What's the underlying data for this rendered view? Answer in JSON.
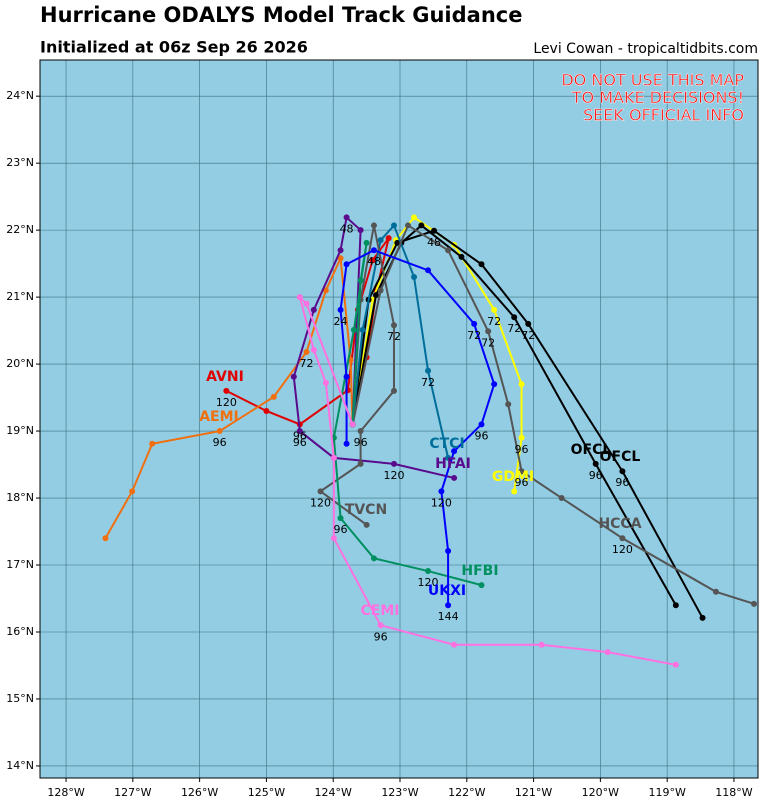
{
  "chart_data": {
    "type": "line",
    "title": "Hurricane ODALYS Model Track Guidance",
    "subtitle": "Initialized at 06z Sep 26 2026",
    "credit": "Levi Cowan - tropicaltidbits.com",
    "warning": [
      "DO NOT USE THIS MAP",
      "TO MAKE DECISIONS!",
      "SEEK OFFICIAL INFO"
    ],
    "xlim": [
      -128.39,
      -117.64
    ],
    "ylim": [
      13.82,
      24.54
    ],
    "xticks": [
      {
        "value": -128,
        "label": "128°W"
      },
      {
        "value": -127,
        "label": "127°W"
      },
      {
        "value": -126,
        "label": "126°W"
      },
      {
        "value": -125,
        "label": "125°W"
      },
      {
        "value": -124,
        "label": "124°W"
      },
      {
        "value": -123,
        "label": "123°W"
      },
      {
        "value": -122,
        "label": "122°W"
      },
      {
        "value": -121,
        "label": "121°W"
      },
      {
        "value": -120,
        "label": "120°W"
      },
      {
        "value": -119,
        "label": "119°W"
      },
      {
        "value": -118,
        "label": "118°W"
      }
    ],
    "yticks": [
      {
        "value": 14,
        "label": "14°N"
      },
      {
        "value": 15,
        "label": "15°N"
      },
      {
        "value": 16,
        "label": "16°N"
      },
      {
        "value": 17,
        "label": "17°N"
      },
      {
        "value": 18,
        "label": "18°N"
      },
      {
        "value": 19,
        "label": "19°N"
      },
      {
        "value": 20,
        "label": "20°N"
      },
      {
        "value": 21,
        "label": "21°N"
      },
      {
        "value": 22,
        "label": "22°N"
      },
      {
        "value": 23,
        "label": "23°N"
      },
      {
        "value": 24,
        "label": "24°N"
      }
    ],
    "grid": true,
    "series": [
      {
        "name": "AVNI",
        "color": "#e00000",
        "x": [
          -123.71,
          -123.5,
          -123.35,
          -123.17,
          -123.41,
          -123.63,
          -123.78,
          -124.5,
          -125.0,
          -125.6
        ],
        "values": [
          19.1,
          20.1,
          21.1,
          21.88,
          21.55,
          20.81,
          19.61,
          19.1,
          19.3,
          19.6
        ],
        "point_labels": [
          null,
          null,
          null,
          null,
          null,
          null,
          null,
          "96",
          null,
          "120"
        ]
      },
      {
        "name": "AEMI",
        "color": "#f07010",
        "x": [
          -123.71,
          -123.74,
          -123.89,
          -124.11,
          -124.4,
          -124.89,
          -125.7,
          -126.71,
          -127.01,
          -127.41
        ],
        "values": [
          19.1,
          20.06,
          21.58,
          21.1,
          20.18,
          19.51,
          19.0,
          18.81,
          18.1,
          17.4
        ],
        "point_labels": [
          null,
          null,
          null,
          null,
          "72",
          null,
          "96",
          null,
          null,
          null
        ]
      },
      {
        "name": "GDMI",
        "color": "#ffff00",
        "x": [
          -123.71,
          -123.41,
          -123.06,
          -122.79,
          -122.19,
          -121.59,
          -121.18,
          -121.18,
          -121.29
        ],
        "values": [
          19.1,
          20.96,
          21.85,
          22.19,
          21.78,
          20.81,
          19.7,
          18.9,
          18.1
        ],
        "point_labels": [
          null,
          null,
          null,
          null,
          null,
          "72",
          null,
          "96",
          null
        ]
      },
      {
        "name": "OFCL",
        "color": "#000000",
        "x": [
          -123.71,
          -123.36,
          -122.98,
          -122.68,
          -122.08,
          -121.29,
          -120.07,
          -118.87
        ],
        "values": [
          19.1,
          21.03,
          21.81,
          22.07,
          21.6,
          20.7,
          18.51,
          16.4
        ],
        "point_labels": [
          null,
          null,
          null,
          null,
          null,
          "72",
          "96",
          null
        ]
      },
      {
        "name": "OFCL",
        "color": "#000000",
        "x": [
          -123.71,
          -123.47,
          -123.04,
          -122.49,
          -121.78,
          -121.08,
          -119.67,
          -118.47
        ],
        "values": [
          19.1,
          20.96,
          21.81,
          21.99,
          21.49,
          20.6,
          18.4,
          16.21
        ],
        "point_labels": [
          null,
          null,
          null,
          "48",
          null,
          "72",
          "96",
          null
        ]
      },
      {
        "name": "CTCI",
        "color": "#006e9a",
        "x": [
          -123.71,
          -123.56,
          -123.29,
          -123.09,
          -122.79,
          -122.58,
          -122.28
        ],
        "values": [
          19.1,
          20.51,
          21.85,
          22.07,
          21.3,
          19.9,
          18.6
        ],
        "point_labels": [
          null,
          null,
          null,
          null,
          null,
          "72",
          null
        ]
      },
      {
        "name": "HFAI",
        "color": "#5a0a8c",
        "x": [
          -123.71,
          -123.59,
          -123.8,
          -123.89,
          -124.29,
          -124.59,
          -124.5,
          -123.99,
          -123.09,
          -122.19
        ],
        "values": [
          19.1,
          22.0,
          22.19,
          21.7,
          20.81,
          19.81,
          19.0,
          18.6,
          18.51,
          18.3
        ],
        "point_labels": [
          null,
          null,
          "48",
          null,
          null,
          null,
          "96",
          null,
          "120",
          null
        ]
      },
      {
        "name": "TVCN",
        "color": "#555555",
        "x": [
          -123.71,
          -123.59,
          -123.39,
          -123.09,
          -123.09,
          -123.59,
          -123.59,
          -124.19,
          -123.5
        ],
        "values": [
          19.1,
          20.96,
          22.07,
          20.58,
          19.6,
          19.0,
          18.51,
          18.1,
          17.6
        ],
        "point_labels": [
          null,
          null,
          null,
          "72",
          null,
          "96",
          null,
          "120",
          null
        ]
      },
      {
        "name": "HCCA",
        "color": "#555555",
        "x": [
          -123.71,
          -123.29,
          -122.88,
          -122.28,
          -121.68,
          -121.38,
          -121.18,
          -120.58,
          -119.67,
          -118.27,
          -117.7
        ],
        "values": [
          19.1,
          21.1,
          22.07,
          21.7,
          20.49,
          19.4,
          18.4,
          18.0,
          17.4,
          16.6,
          16.42
        ],
        "point_labels": [
          null,
          null,
          null,
          null,
          "72",
          null,
          "96",
          null,
          "120",
          null,
          null
        ]
      },
      {
        "name": "HFBI",
        "color": "#009060",
        "x": [
          -123.71,
          -123.59,
          -123.5,
          -123.69,
          -123.99,
          -123.89,
          -123.39,
          -122.58,
          -121.78
        ],
        "values": [
          19.1,
          21.25,
          21.81,
          20.51,
          18.9,
          17.7,
          17.1,
          16.91,
          16.7
        ],
        "point_labels": [
          null,
          null,
          null,
          null,
          null,
          "96",
          null,
          "120",
          null
        ]
      },
      {
        "name": "UKXI",
        "color": "#0000ff",
        "x": [
          -123.8,
          -123.8,
          -123.89,
          -123.8,
          -123.39,
          -122.58,
          -121.89,
          -121.59,
          -121.78,
          -122.19,
          -122.38,
          -122.28,
          -122.28
        ],
        "values": [
          18.81,
          19.81,
          20.81,
          21.49,
          21.7,
          21.4,
          20.6,
          19.7,
          19.1,
          18.7,
          18.1,
          17.21,
          16.4
        ],
        "point_labels": [
          null,
          null,
          "24",
          null,
          "48",
          null,
          "72",
          null,
          "96",
          null,
          "120",
          null,
          "144"
        ]
      },
      {
        "name": "CEMI",
        "color": "#ff70e0",
        "x": [
          -123.71,
          -124.4,
          -124.5,
          -124.29,
          -124.11,
          -123.99,
          -123.99,
          -123.29,
          -122.19,
          -120.88,
          -119.89,
          -118.87
        ],
        "values": [
          19.1,
          20.9,
          21.0,
          20.21,
          19.72,
          18.6,
          17.4,
          16.1,
          15.81,
          15.81,
          15.7,
          15.51
        ],
        "point_labels": [
          null,
          null,
          null,
          null,
          null,
          null,
          null,
          "96",
          null,
          null,
          null,
          null
        ]
      }
    ]
  }
}
